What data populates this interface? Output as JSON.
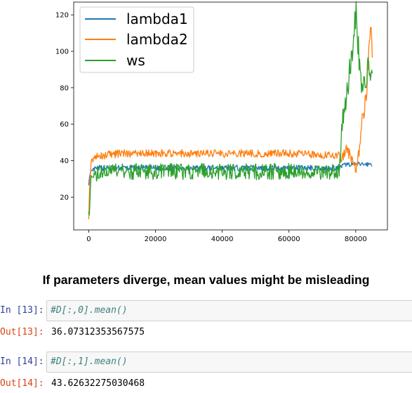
{
  "chart_data": {
    "type": "line",
    "title": "",
    "xlabel": "",
    "ylabel": "",
    "xlim": [
      -4500,
      89500
    ],
    "ylim": [
      2,
      127
    ],
    "x_ticks": [
      "0",
      "20000",
      "40000",
      "60000",
      "80000"
    ],
    "y_ticks": [
      "20",
      "40",
      "60",
      "80",
      "100",
      "120"
    ],
    "legend_position": "upper-left",
    "grid": false,
    "series": [
      {
        "name": "lambda1",
        "color": "#1f77b4",
        "points": [
          [
            0,
            28
          ],
          [
            600,
            33
          ],
          [
            1500,
            35
          ],
          [
            3000,
            36
          ],
          [
            10000,
            36
          ],
          [
            20000,
            36
          ],
          [
            30000,
            36
          ],
          [
            40000,
            36
          ],
          [
            50000,
            36
          ],
          [
            60000,
            36
          ],
          [
            70000,
            36
          ],
          [
            75000,
            36
          ],
          [
            77000,
            38
          ],
          [
            80000,
            38
          ],
          [
            83000,
            38
          ],
          [
            85000,
            38
          ]
        ]
      },
      {
        "name": "lambda2",
        "color": "#ff7f0e",
        "points": [
          [
            0,
            10
          ],
          [
            300,
            30
          ],
          [
            700,
            39
          ],
          [
            1500,
            42
          ],
          [
            5000,
            43
          ],
          [
            10000,
            44
          ],
          [
            20000,
            44
          ],
          [
            30000,
            44
          ],
          [
            40000,
            44
          ],
          [
            50000,
            44
          ],
          [
            60000,
            44
          ],
          [
            70000,
            43
          ],
          [
            75000,
            43
          ],
          [
            76000,
            42
          ],
          [
            77000,
            46
          ],
          [
            78000,
            44
          ],
          [
            79000,
            40
          ],
          [
            80000,
            35
          ],
          [
            81000,
            42
          ],
          [
            81500,
            55
          ],
          [
            82000,
            65
          ],
          [
            83000,
            72
          ],
          [
            84000,
            100
          ],
          [
            84500,
            116
          ],
          [
            85000,
            100
          ]
        ]
      },
      {
        "name": "ws",
        "color": "#2ca02c",
        "points": [
          [
            0,
            15
          ],
          [
            200,
            8
          ],
          [
            500,
            28
          ],
          [
            1500,
            33
          ],
          [
            5000,
            34
          ],
          [
            10000,
            34
          ],
          [
            20000,
            34
          ],
          [
            30000,
            34
          ],
          [
            40000,
            34
          ],
          [
            50000,
            34
          ],
          [
            60000,
            34
          ],
          [
            70000,
            34
          ],
          [
            75000,
            34
          ],
          [
            75500,
            45
          ],
          [
            76000,
            62
          ],
          [
            77000,
            70
          ],
          [
            78000,
            88
          ],
          [
            79000,
            100
          ],
          [
            80000,
            122
          ],
          [
            80500,
            110
          ],
          [
            81000,
            95
          ],
          [
            82000,
            80
          ],
          [
            83000,
            85
          ],
          [
            84000,
            95
          ],
          [
            85000,
            80
          ]
        ]
      }
    ]
  },
  "heading": "If parameters diverge, mean values might be misleading",
  "cells": [
    {
      "in_prompt": "In [13]:",
      "code": "#D[:,0].mean()",
      "out_prompt": "Out[13]:",
      "output": "36.07312353567575"
    },
    {
      "in_prompt": "In [14]:",
      "code": "#D[:,1].mean()",
      "out_prompt": "Out[14]:",
      "output": "43.62632275030468"
    }
  ]
}
